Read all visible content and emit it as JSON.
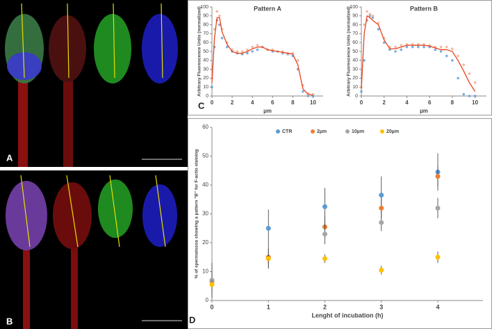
{
  "panel_labels": [
    "A",
    "B",
    "C",
    "D"
  ],
  "chart_data": [
    {
      "type": "line",
      "title": "Pattern A",
      "x_label": "µm",
      "y_label": "Arbitrary Fluorescence Units (normalized)",
      "x": [
        0,
        0.25,
        0.5,
        0.75,
        1,
        1.5,
        2,
        2.5,
        3,
        3.5,
        4,
        4.5,
        5,
        5.5,
        6,
        6.5,
        7,
        7.5,
        8,
        8.5,
        9,
        9.5,
        10
      ],
      "series": [
        {
          "color": "#5b9bd5",
          "markers": true,
          "values": [
            10,
            55,
            85,
            80,
            65,
            55,
            50,
            48,
            47,
            48,
            50,
            52,
            55,
            52,
            50,
            50,
            48,
            47,
            45,
            30,
            5,
            0,
            0
          ]
        },
        {
          "color": "#f4a582",
          "markers": true,
          "values": [
            20,
            75,
            95,
            90,
            75,
            60,
            52,
            50,
            50,
            52,
            55,
            57,
            55,
            52,
            52,
            50,
            50,
            48,
            48,
            40,
            12,
            3,
            2
          ]
        },
        {
          "color": "#e8421c",
          "markers": false,
          "values": [
            15,
            65,
            88,
            88,
            72,
            58,
            50,
            48,
            48,
            50,
            53,
            55,
            55,
            52,
            51,
            50,
            49,
            48,
            47,
            35,
            8,
            2,
            1
          ]
        }
      ],
      "xlim": [
        0,
        11
      ],
      "xticks": [
        0,
        2,
        4,
        6,
        8,
        10
      ],
      "ylim": [
        0,
        100
      ],
      "yticks": [
        0,
        10,
        20,
        30,
        40,
        50,
        60,
        70,
        80,
        90,
        100
      ]
    },
    {
      "type": "line",
      "title": "Pattern B",
      "x_label": "µm",
      "y_label": "Arbitrary Fluorescence Units (normalized)",
      "x": [
        0,
        0.25,
        0.5,
        0.75,
        1,
        1.5,
        2,
        2.5,
        3,
        3.5,
        4,
        4.5,
        5,
        5.5,
        6,
        6.5,
        7,
        7.5,
        8,
        8.5,
        9,
        9.5,
        10
      ],
      "series": [
        {
          "color": "#5b9bd5",
          "markers": true,
          "values": [
            5,
            40,
            85,
            90,
            88,
            75,
            60,
            52,
            50,
            52,
            55,
            55,
            55,
            55,
            55,
            52,
            50,
            45,
            40,
            20,
            2,
            0,
            0
          ]
        },
        {
          "color": "#f4a582",
          "markers": true,
          "values": [
            10,
            80,
            95,
            92,
            90,
            82,
            65,
            55,
            55,
            57,
            58,
            58,
            58,
            58,
            57,
            55,
            55,
            55,
            53,
            45,
            35,
            25,
            15
          ]
        },
        {
          "color": "#e8421c",
          "markers": false,
          "values": [
            8,
            70,
            90,
            88,
            85,
            80,
            63,
            53,
            53,
            55,
            57,
            57,
            57,
            57,
            56,
            54,
            52,
            52,
            50,
            40,
            28,
            15,
            5
          ]
        }
      ],
      "xlim": [
        0,
        11
      ],
      "xticks": [
        0,
        2,
        4,
        6,
        8,
        10
      ],
      "ylim": [
        0,
        100
      ],
      "yticks": [
        0,
        10,
        20,
        30,
        40,
        50,
        60,
        70,
        80,
        90,
        100
      ]
    },
    {
      "type": "scatter",
      "x_label": "Lenght of incubation (h)",
      "y_label": "% of spermatozoa showing a pattern \"B\" for F-actin staining",
      "x": [
        0,
        1,
        2,
        3,
        4
      ],
      "series": [
        {
          "name": "CTR",
          "color": "#5b9bd5",
          "values": [
            7,
            25,
            32.5,
            36.5,
            44.5
          ],
          "errors": [
            6,
            6.5,
            6.5,
            6.5,
            6.5
          ]
        },
        {
          "name": "2µm",
          "color": "#ed7d31",
          "values": [
            6.5,
            15,
            25.5,
            32,
            43
          ],
          "errors": [
            3,
            3.5,
            3.5,
            3.5,
            3.5
          ]
        },
        {
          "name": "10µm",
          "color": "#a5a5a5",
          "values": [
            7,
            14.5,
            23,
            27,
            32
          ],
          "errors": [
            3,
            3.5,
            3.5,
            3,
            3.5
          ]
        },
        {
          "name": "20µm",
          "color": "#ffc000",
          "values": [
            5.5,
            14.5,
            14.5,
            10.5,
            15
          ],
          "errors": [
            1.5,
            1.5,
            1.5,
            1.5,
            2
          ]
        }
      ],
      "xlim": [
        0,
        4.8
      ],
      "xticks": [
        0,
        1,
        2,
        3,
        4
      ],
      "ylim": [
        0,
        60
      ],
      "yticks": [
        0,
        10,
        20,
        30,
        40,
        50,
        60
      ]
    }
  ]
}
